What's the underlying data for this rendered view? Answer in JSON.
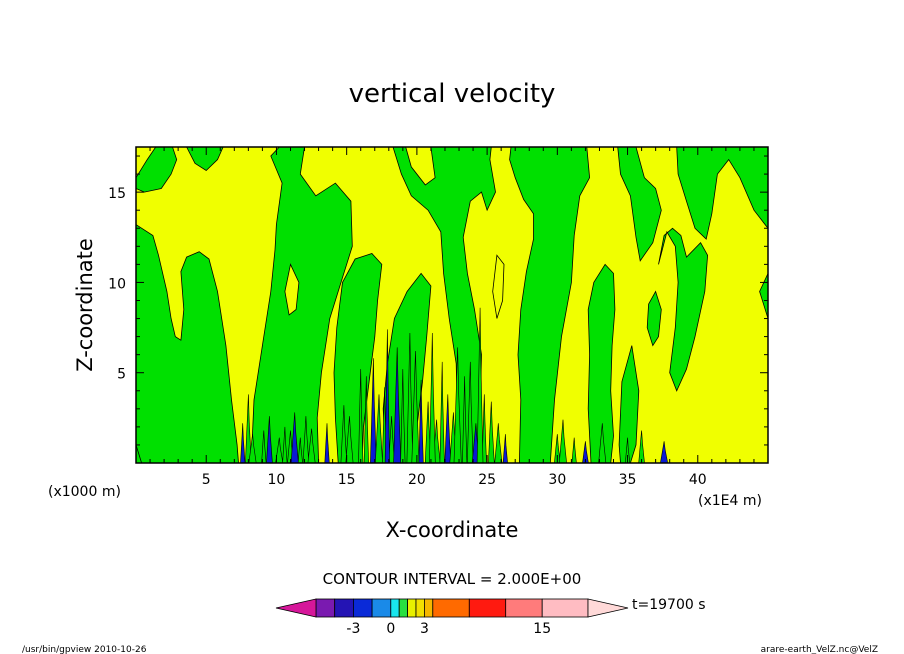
{
  "footer": {
    "left": "/usr/bin/gpview  2010-10-26",
    "right": "arare-earth_VelZ.nc@VelZ"
  },
  "chart_data": {
    "type": "heatmap",
    "title": "vertical velocity",
    "xlabel": "X-coordinate",
    "ylabel": "Z-coordinate",
    "x_units_note": "(x1000 m)",
    "x_scale_note": "(x1E4 m)",
    "xlim": [
      0,
      45
    ],
    "ylim": [
      0,
      17.5
    ],
    "xticks": [
      5,
      10,
      15,
      20,
      25,
      30,
      35,
      40
    ],
    "yticks": [
      5,
      10,
      15
    ],
    "contour_interval_text": "CONTOUR INTERVAL = 2.000E+00",
    "time_label": "t=19700 s",
    "colorbar": {
      "tick_labels": [
        {
          "label": "-3",
          "value": -3
        },
        {
          "label": "0",
          "value": 0
        },
        {
          "label": "3",
          "value": 3
        },
        {
          "label": "15",
          "value": 15
        }
      ],
      "colors": [
        "#d6179a",
        "#7a1ab0",
        "#2414b4",
        "#0a2ad8",
        "#1a8ae8",
        "#19e6ee",
        "#28e040",
        "#e8f000",
        "#f2e000",
        "#f6b800",
        "#ff6a00",
        "#ff1a10",
        "#ff7b7b",
        "#ffbcc2",
        "#ffd9d8"
      ]
    },
    "field_levels": {
      "green": "#00e000",
      "yellow": "#f0ff00",
      "blue": "#0a1ad4"
    }
  }
}
